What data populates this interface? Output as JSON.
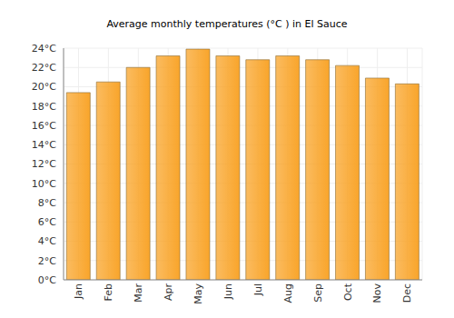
{
  "chart_data": {
    "type": "bar",
    "title": "Average monthly temperatures (°C ) in El Sauce",
    "categories": [
      "Jan",
      "Feb",
      "Mar",
      "Apr",
      "May",
      "Jun",
      "Jul",
      "Aug",
      "Sep",
      "Oct",
      "Nov",
      "Dec"
    ],
    "values": [
      19.4,
      20.5,
      22.0,
      23.2,
      23.9,
      23.2,
      22.8,
      23.2,
      22.8,
      22.2,
      20.9,
      20.3
    ],
    "color": "#f9a52b",
    "ylim": [
      0,
      24
    ],
    "yticks": [
      {
        "value": 0,
        "label": "0°C"
      },
      {
        "value": 2,
        "label": "2°C"
      },
      {
        "value": 4,
        "label": "4°C"
      },
      {
        "value": 6,
        "label": "6°C"
      },
      {
        "value": 8,
        "label": "8°C"
      },
      {
        "value": 10,
        "label": "10°C"
      },
      {
        "value": 12,
        "label": "12°C"
      },
      {
        "value": 14,
        "label": "14°C"
      },
      {
        "value": 16,
        "label": "16°C"
      },
      {
        "value": 18,
        "label": "18°C"
      },
      {
        "value": 20,
        "label": "20°C"
      },
      {
        "value": 22,
        "label": "22°C"
      },
      {
        "value": 24,
        "label": "24°C"
      }
    ],
    "grid": true
  }
}
